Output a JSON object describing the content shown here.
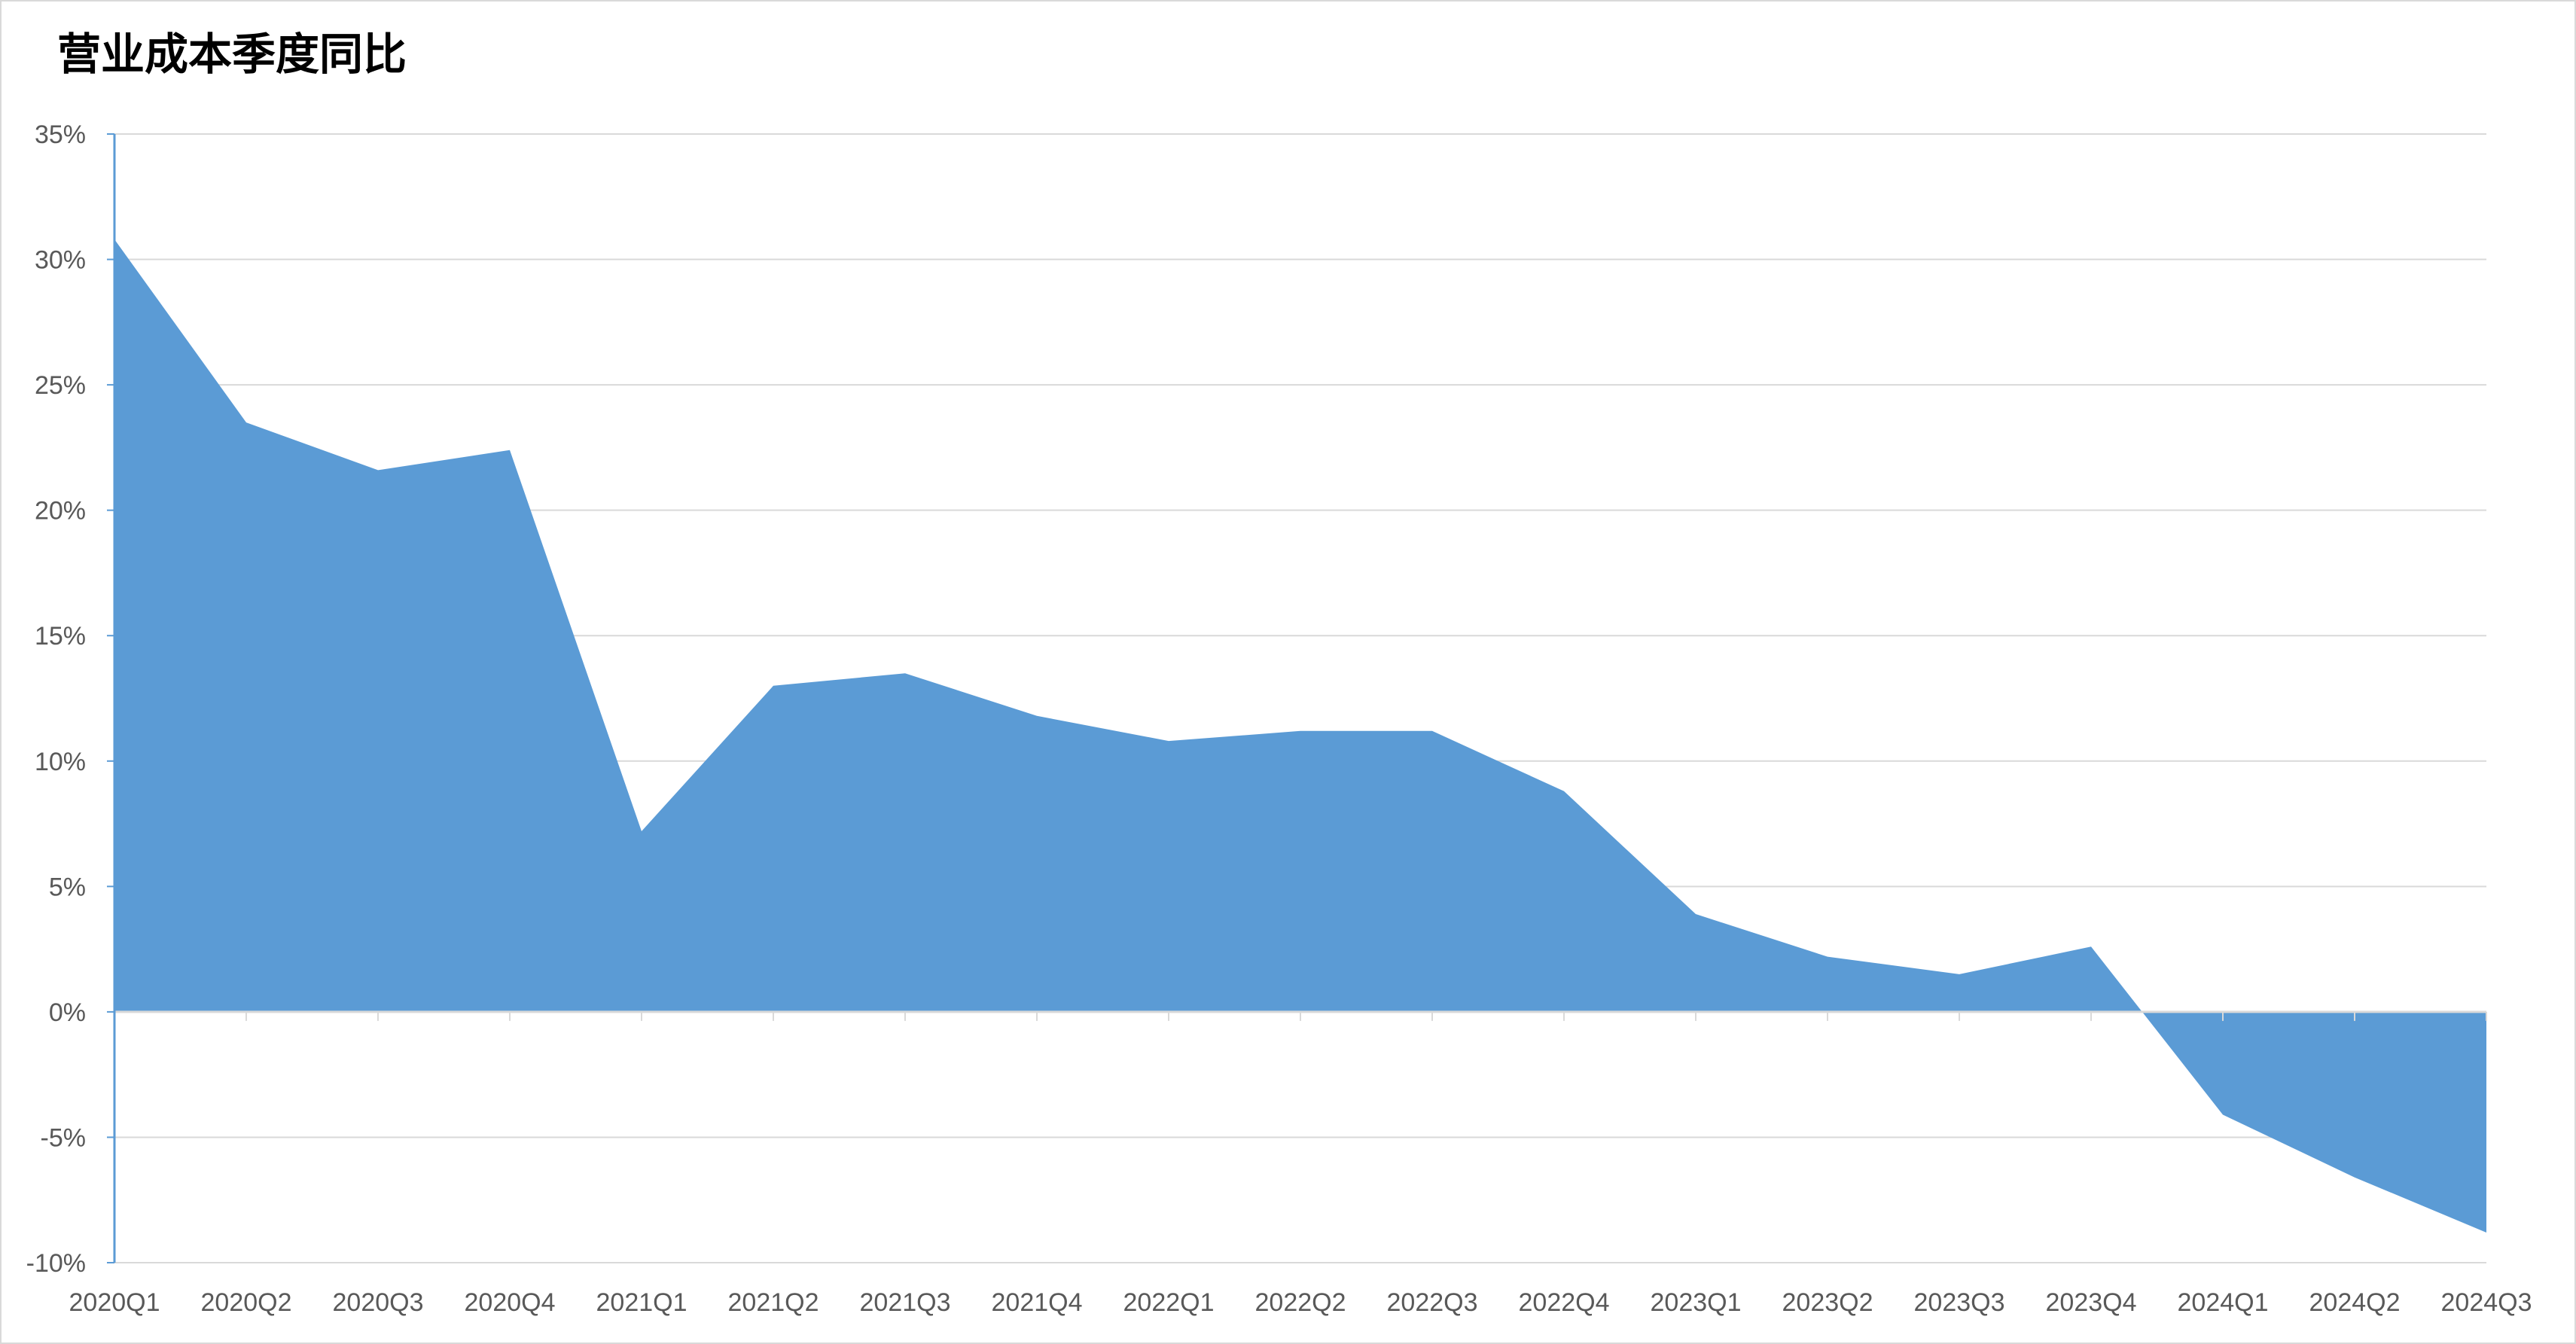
{
  "chart_data": {
    "type": "area",
    "title": "营业成本季度同比",
    "xlabel": "",
    "ylabel": "",
    "categories": [
      "2020Q1",
      "2020Q2",
      "2020Q3",
      "2020Q4",
      "2021Q1",
      "2021Q2",
      "2021Q3",
      "2021Q4",
      "2022Q1",
      "2022Q2",
      "2022Q3",
      "2022Q4",
      "2023Q1",
      "2023Q2",
      "2023Q3",
      "2023Q4",
      "2024Q1",
      "2024Q2",
      "2024Q3"
    ],
    "series": [
      {
        "values": [
          30.8,
          23.5,
          21.6,
          22.4,
          7.2,
          13.0,
          13.5,
          11.8,
          10.8,
          11.2,
          11.2,
          8.8,
          3.9,
          2.2,
          1.5,
          2.6,
          -4.1,
          -6.6,
          -8.8
        ]
      }
    ],
    "ylim": [
      -10,
      35
    ],
    "yticks": [
      35,
      30,
      25,
      20,
      15,
      10,
      5,
      0,
      -5,
      -10
    ],
    "ytick_labels": [
      "35%",
      "30%",
      "25%",
      "20%",
      "15%",
      "10%",
      "5%",
      "0%",
      "-5%",
      "-10%"
    ],
    "grid": true,
    "legend": "none",
    "colors": {
      "area": "#5b9bd5",
      "axis": "#5b9bd5",
      "grid": "#d9d9d9",
      "tick_text": "#595959"
    }
  }
}
